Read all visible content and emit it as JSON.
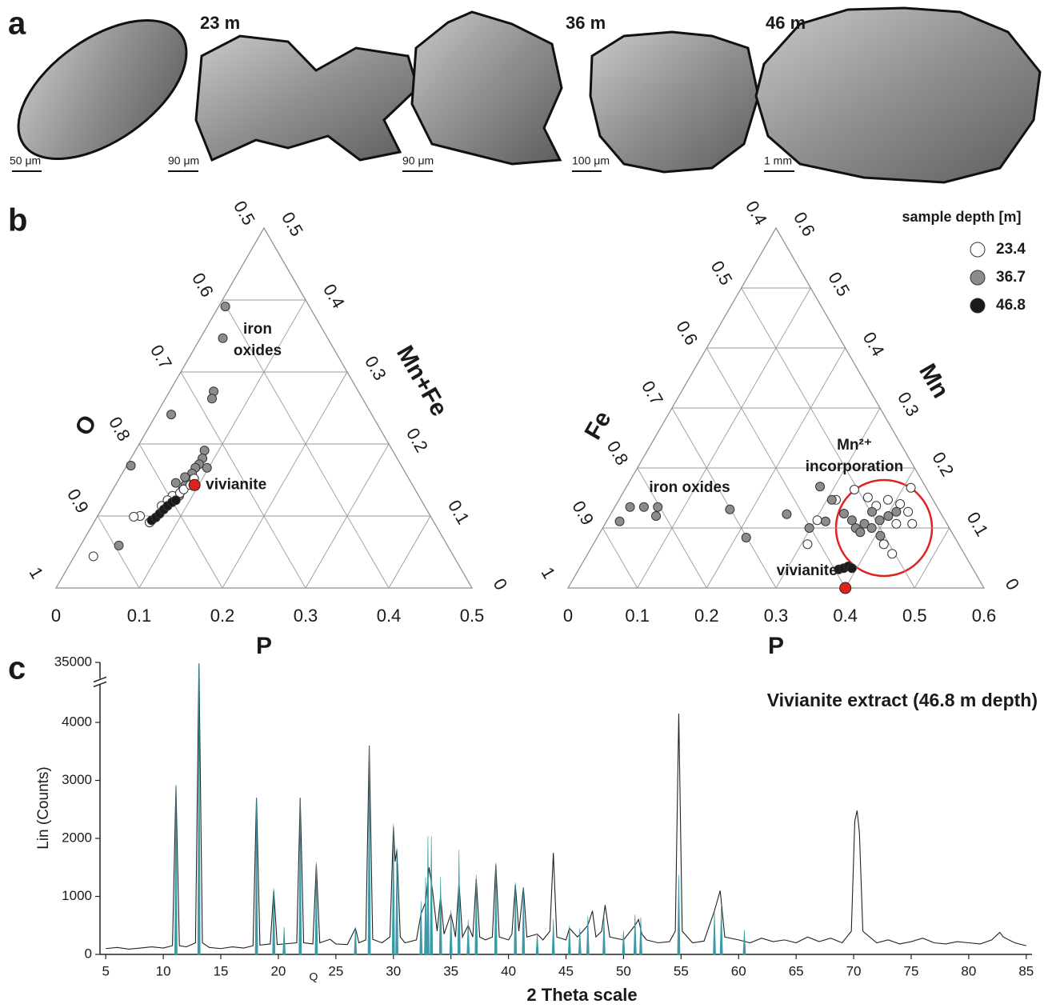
{
  "figure": {
    "panel_labels": [
      "a",
      "b",
      "c"
    ],
    "depth_labels": [
      "23 m",
      "36 m",
      "46 m"
    ],
    "scale_bars": [
      "50 μm",
      "90 μm",
      "90 μm",
      "100 μm",
      "1 mm"
    ]
  },
  "chart_data": [
    {
      "type": "ternary",
      "axis_labels": {
        "bottom": "P",
        "left": "O",
        "right": "Mn+Fe"
      },
      "plim": [
        0,
        0.5
      ],
      "bottom_ticks": [
        0,
        0.1,
        0.2,
        0.3,
        0.4,
        0.5
      ],
      "left_ticks": [
        1,
        0.9,
        0.8,
        0.7,
        0.6,
        0.5
      ],
      "right_ticks": [
        0,
        0.1,
        0.2,
        0.3,
        0.4,
        0.5
      ],
      "series": [
        {
          "color": "#8c8c8c",
          "P": [
            0.008,
            0.027,
            0.053,
            0.056,
            0.018,
            0.083,
            0.086,
            0.086,
            0.084,
            0.084,
            0.085,
            0.084,
            0.084,
            0.084,
            0.005,
            0.046,
            0.098,
            0.071,
            0.078
          ],
          "M": [
            0.391,
            0.347,
            0.273,
            0.263,
            0.241,
            0.191,
            0.18,
            0.172,
            0.167,
            0.159,
            0.15,
            0.143,
            0.136,
            0.128,
            0.17,
            0.059,
            0.167,
            0.146,
            0.154
          ]
        },
        {
          "color": "#ffffff",
          "P": [
            0.023,
            0.051,
            0.044,
            0.067,
            0.076,
            0.083,
            0.085,
            0.09,
            0.073,
            0.07,
            0.09
          ],
          "M": [
            0.044,
            0.1,
            0.099,
            0.091,
            0.128,
            0.132,
            0.137,
            0.143,
            0.122,
            0.114,
            0.152
          ]
        },
        {
          "color": "#1a1a1a",
          "P": [
            0.068,
            0.071,
            0.073,
            0.075,
            0.077,
            0.08,
            0.083
          ],
          "M": [
            0.094,
            0.098,
            0.103,
            0.109,
            0.114,
            0.119,
            0.122
          ]
        }
      ],
      "reference": {
        "label": "vivianite",
        "color": "#e0221e",
        "P": 0.095,
        "M": 0.143
      },
      "annotations": [
        [
          "iron",
          "oxides"
        ]
      ]
    },
    {
      "type": "ternary",
      "axis_labels": {
        "bottom": "P",
        "left": "Fe",
        "right": "Mn"
      },
      "plim": [
        0,
        0.6
      ],
      "bottom_ticks": [
        0,
        0.1,
        0.2,
        0.3,
        0.4,
        0.5,
        0.6
      ],
      "left_ticks": [
        1,
        0.9,
        0.8,
        0.7,
        0.6,
        0.5,
        0.4
      ],
      "right_ticks": [
        0,
        0.1,
        0.2,
        0.3,
        0.4,
        0.5,
        0.6
      ],
      "legend_title": "sample depth [m]",
      "series": [
        {
          "name": "23.4",
          "color": "#ffffff",
          "P": [
            0.309,
            0.303,
            0.313,
            0.331,
            0.357,
            0.376,
            0.388,
            0.409,
            0.427,
            0.443,
            0.42,
            0.411,
            0.439,
            0.419
          ],
          "M": [
            0.073,
            0.113,
            0.147,
            0.164,
            0.151,
            0.137,
            0.147,
            0.14,
            0.127,
            0.107,
            0.107,
            0.167,
            0.057,
            0.073
          ]
        },
        {
          "name": "36.7",
          "color": "#8c8c8c",
          "P": [
            0.019,
            0.022,
            0.042,
            0.062,
            0.067,
            0.168,
            0.215,
            0.254,
            0.298,
            0.279,
            0.307,
            0.316,
            0.336,
            0.353,
            0.365,
            0.374,
            0.388,
            0.393,
            0.402,
            0.41,
            0.375,
            0.375,
            0.407
          ],
          "M": [
            0.111,
            0.135,
            0.135,
            0.135,
            0.12,
            0.131,
            0.084,
            0.123,
            0.1,
            0.169,
            0.147,
            0.111,
            0.124,
            0.113,
            0.1,
            0.107,
            0.1,
            0.113,
            0.12,
            0.127,
            0.127,
            0.093,
            0.087
          ]
        },
        {
          "name": "46.8",
          "color": "#1a1a1a",
          "P": [
            0.375,
            0.381,
            0.386,
            0.393
          ],
          "M": [
            0.031,
            0.033,
            0.036,
            0.033
          ]
        }
      ],
      "reference": {
        "label": "vivianite",
        "color": "#e0221e",
        "P": 0.4,
        "M": 0
      },
      "annotations": [
        [
          "iron oxides"
        ],
        [
          "Mn²⁺",
          "incorporation"
        ]
      ]
    },
    {
      "type": "line",
      "title": "Vivianite extract (46.8 m depth)",
      "xlabel": "2 Theta scale",
      "ylabel": "Lin (Counts)",
      "xlim": [
        4.5,
        85.5
      ],
      "xticks": [
        5,
        10,
        15,
        20,
        25,
        30,
        35,
        40,
        45,
        50,
        55,
        60,
        65,
        70,
        75,
        80,
        85
      ],
      "ylim": [
        0,
        35000
      ],
      "yticks": [
        0,
        1000,
        2000,
        3000,
        4000,
        35000
      ],
      "y_break": true,
      "annotations": [
        "Q"
      ],
      "series": [
        {
          "color": "#222222",
          "x": [
            5,
            6,
            7,
            8,
            9,
            10,
            10.8,
            11.1,
            11.4,
            12,
            12.8,
            13.1,
            13.4,
            14,
            15,
            16,
            17,
            17.8,
            18.1,
            18.4,
            19.3,
            19.6,
            19.9,
            21.6,
            21.9,
            22.2,
            23,
            23.3,
            23.6,
            24.5,
            25,
            26,
            26.7,
            27,
            27.6,
            27.9,
            28.2,
            29,
            29.7,
            30,
            30.15,
            30.3,
            30.6,
            31,
            32,
            32.4,
            32.8,
            33.1,
            33.4,
            33.8,
            34.1,
            34.4,
            35,
            35.4,
            35.7,
            36,
            36.5,
            36.9,
            37.2,
            37.5,
            38,
            38.6,
            38.9,
            39.2,
            40,
            40.3,
            40.6,
            40.9,
            41.3,
            41.6,
            42.5,
            43,
            43.6,
            43.9,
            44.2,
            45,
            45.3,
            46,
            46.9,
            47.3,
            47.6,
            48.1,
            48.4,
            48.8,
            50,
            51,
            51.3,
            51.6,
            52,
            53,
            54,
            54.5,
            54.8,
            55.1,
            56,
            57,
            57.9,
            58.4,
            58.8,
            60,
            61,
            62,
            63,
            64,
            65,
            66,
            67,
            68,
            69,
            69.8,
            70.1,
            70.3,
            70.5,
            70.8,
            72,
            73,
            74,
            75,
            76,
            77,
            78,
            79,
            80,
            81,
            82,
            82.7,
            83,
            84,
            85
          ],
          "values": [
            100,
            120,
            90,
            110,
            130,
            110,
            150,
            2900,
            150,
            130,
            200,
            34000,
            200,
            120,
            100,
            130,
            110,
            150,
            2700,
            160,
            180,
            1100,
            170,
            200,
            2700,
            200,
            180,
            1550,
            200,
            260,
            180,
            170,
            450,
            200,
            250,
            3600,
            260,
            200,
            300,
            2200,
            1600,
            1800,
            300,
            200,
            250,
            700,
            900,
            1500,
            1100,
            400,
            1000,
            350,
            700,
            300,
            1250,
            300,
            500,
            300,
            1300,
            300,
            250,
            300,
            1550,
            300,
            250,
            350,
            1200,
            400,
            1150,
            300,
            350,
            250,
            400,
            1750,
            300,
            250,
            450,
            300,
            500,
            750,
            300,
            400,
            850,
            300,
            250,
            500,
            600,
            350,
            250,
            200,
            220,
            400,
            4150,
            400,
            200,
            230,
            750,
            1100,
            300,
            250,
            200,
            280,
            220,
            250,
            200,
            300,
            220,
            280,
            200,
            400,
            2300,
            2480,
            2100,
            400,
            200,
            250,
            180,
            220,
            280,
            200,
            180,
            220,
            200,
            180,
            250,
            380,
            300,
            200,
            150
          ]
        },
        {
          "color": "#3a9aa8",
          "style": "sticks",
          "x": [
            11.1,
            13.1,
            18.1,
            19.6,
            20.5,
            21.9,
            23.3,
            26.7,
            27.9,
            30,
            30.3,
            32.4,
            32.8,
            33,
            33.3,
            34.1,
            35,
            35.7,
            36.5,
            37.2,
            38.9,
            40.6,
            41.3,
            42.5,
            43.9,
            45.3,
            46.2,
            46.9,
            48.3,
            50,
            51,
            51.5,
            54.8,
            57.9,
            58.5,
            60.5
          ],
          "values": [
            2930,
            34000,
            2700,
            1140,
            470,
            2700,
            1590,
            470,
            3590,
            2250,
            1840,
            920,
            1330,
            2040,
            2040,
            1340,
            760,
            1800,
            600,
            1370,
            1580,
            1240,
            1160,
            360,
            610,
            500,
            450,
            660,
            660,
            410,
            690,
            640,
            1370,
            730,
            860,
            420
          ]
        }
      ]
    }
  ]
}
